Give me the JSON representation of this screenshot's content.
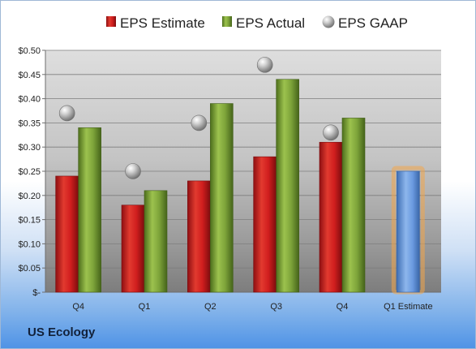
{
  "company": "US Ecology",
  "colors": {
    "estimate": "#c8181c",
    "actual": "#6f9a2c",
    "gaap": "#9a9a9a",
    "forecast": "#5b8fd6",
    "forecast_glow": "#f2a64a"
  },
  "chart_data": {
    "type": "bar",
    "categories": [
      "Q4",
      "Q1",
      "Q2",
      "Q3",
      "Q4",
      "Q1 Estimate"
    ],
    "series": [
      {
        "name": "EPS Estimate",
        "values": [
          0.24,
          0.18,
          0.23,
          0.28,
          0.31,
          null
        ]
      },
      {
        "name": "EPS Actual",
        "values": [
          0.34,
          0.21,
          0.39,
          0.44,
          0.36,
          null
        ]
      },
      {
        "name": "EPS GAAP",
        "values": [
          0.37,
          0.25,
          0.35,
          0.47,
          0.33,
          null
        ]
      }
    ],
    "forecast": {
      "category": "Q1 Estimate",
      "value": 0.25
    },
    "ylim": [
      0,
      0.5
    ],
    "yticks": [
      0,
      0.05,
      0.1,
      0.15,
      0.2,
      0.25,
      0.3,
      0.35,
      0.4,
      0.45,
      0.5
    ],
    "ytick_labels": [
      "$-",
      "$0.05",
      "$0.10",
      "$0.15",
      "$0.20",
      "$0.25",
      "$0.30",
      "$0.35",
      "$0.40",
      "$0.45",
      "$0.50"
    ],
    "grid": true,
    "legend": "top"
  }
}
